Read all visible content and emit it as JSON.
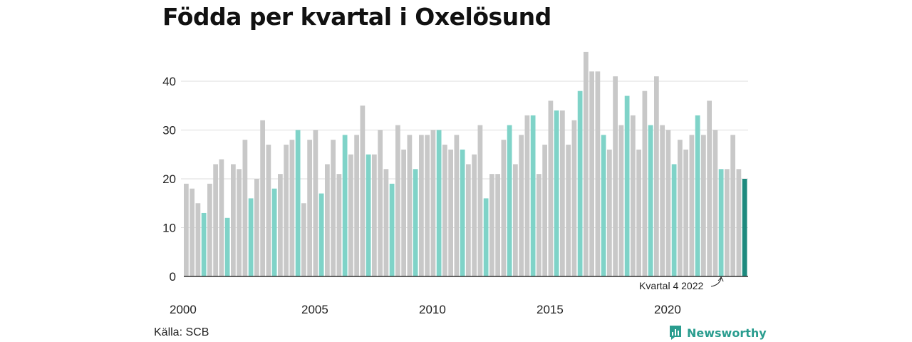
{
  "title": "Födda per kvartal i Oxelösund",
  "source": "Källa: SCB",
  "brand": {
    "name": "Newsworthy",
    "icon": "newsworthy-logo-icon"
  },
  "annotation": {
    "text": "Kvartal 4 2022"
  },
  "colors": {
    "bar": "#c8c8c8",
    "q4": "#7fd3c8",
    "latest": "#1d8a7e",
    "grid": "#dddddd",
    "axis": "#333333",
    "brand": "#2a9d8f"
  },
  "chart_data": {
    "type": "bar",
    "title": "Födda per kvartal i Oxelösund",
    "xlabel": "",
    "ylabel": "",
    "ylim": [
      0,
      46
    ],
    "yticks": [
      0,
      10,
      20,
      30,
      40
    ],
    "xticks": [
      "2000",
      "2005",
      "2010",
      "2015",
      "2020"
    ],
    "grid": true,
    "first_quarter": "2000 Q1",
    "highlight": "Q4 bars teal, latest bar dark teal",
    "values": [
      19,
      18,
      15,
      13,
      19,
      23,
      24,
      12,
      23,
      22,
      28,
      16,
      20,
      32,
      27,
      18,
      21,
      27,
      28,
      30,
      15,
      28,
      30,
      17,
      23,
      28,
      21,
      29,
      25,
      29,
      35,
      25,
      25,
      30,
      22,
      19,
      31,
      26,
      29,
      22,
      29,
      29,
      30,
      30,
      27,
      26,
      29,
      26,
      23,
      25,
      31,
      16,
      21,
      21,
      28,
      31,
      23,
      29,
      33,
      33,
      21,
      27,
      36,
      34,
      34,
      27,
      32,
      38,
      46,
      42,
      42,
      29,
      26,
      41,
      31,
      37,
      33,
      26,
      38,
      31,
      41,
      31,
      30,
      23,
      28,
      26,
      29,
      33,
      29,
      36,
      30,
      22,
      22,
      29,
      22,
      20
    ]
  }
}
